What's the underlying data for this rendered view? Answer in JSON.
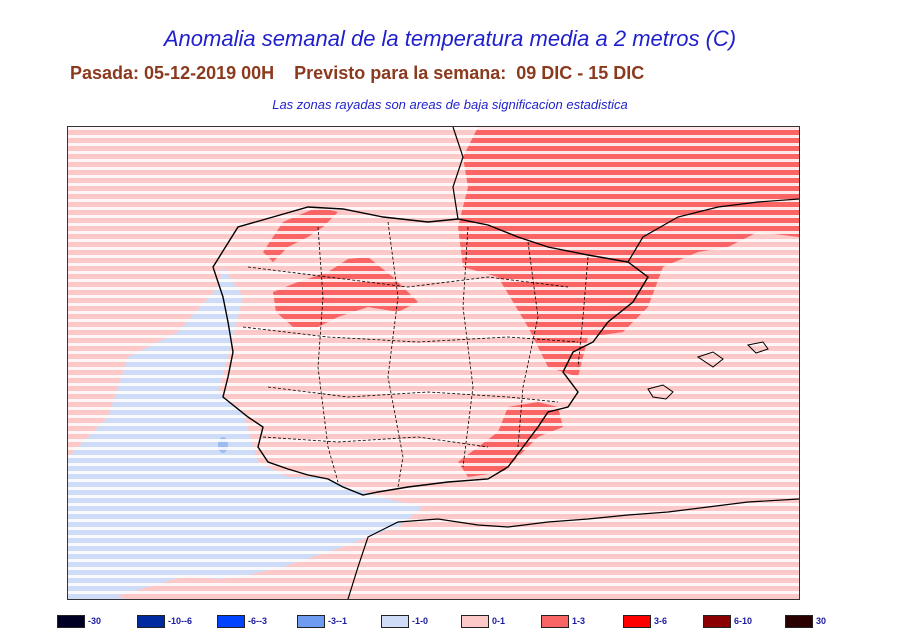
{
  "header": {
    "title": "Anomalia semanal de la temperatura media a 2 metros (C)",
    "subtitle_left": "Pasada: 05-12-2019 00H",
    "subtitle_right": "Previsto para la semana:  09 DIC - 15 DIC",
    "note": "Las zonas rayadas son areas de baja significacion estadistica"
  },
  "colors": {
    "negative_light": "#cfdcf7",
    "positive_light": "#fcc8c8",
    "positive_mid": "#f96464",
    "hatch": "#ffffff",
    "border": "#000000"
  },
  "legend": [
    {
      "label": "-30",
      "color": "#000024"
    },
    {
      "label": "-10--6",
      "color": "#002aa0"
    },
    {
      "label": "-6--3",
      "color": "#0044ff"
    },
    {
      "label": "-3--1",
      "color": "#6e9cf0"
    },
    {
      "label": "-1-0",
      "color": "#cfdcf7"
    },
    {
      "label": "0-1",
      "color": "#fcc8c8"
    },
    {
      "label": "1-3",
      "color": "#f96464"
    },
    {
      "label": "3-6",
      "color": "#ff0000"
    },
    {
      "label": "6-10",
      "color": "#8b0000"
    },
    {
      "label": "30",
      "color": "#2a0000"
    }
  ]
}
